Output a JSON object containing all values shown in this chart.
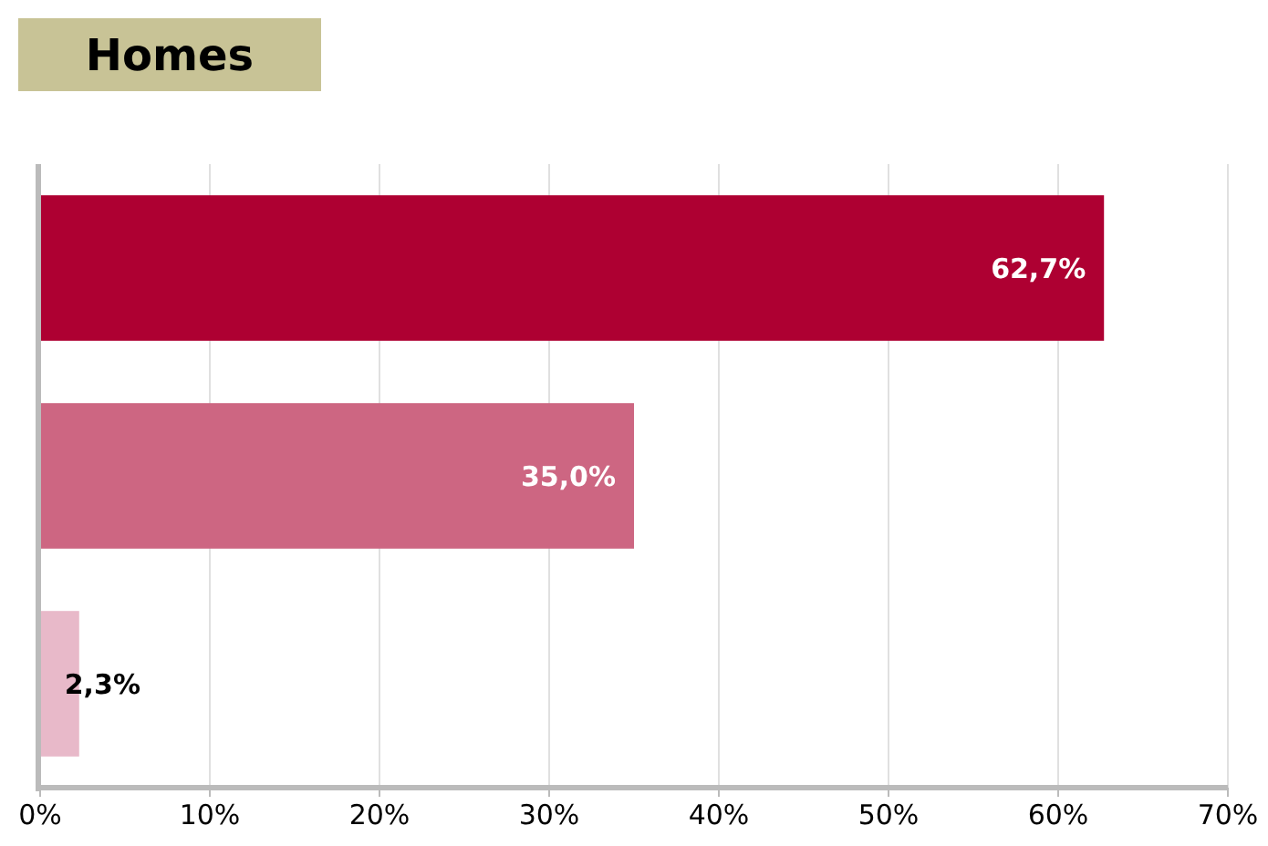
{
  "chart_data": {
    "type": "bar",
    "orientation": "horizontal",
    "title": "Homes",
    "categories": [
      null,
      null,
      null
    ],
    "values": [
      62.7,
      35.0,
      2.3
    ],
    "colors": [
      "#ae0032",
      "#cd6682",
      "#e8b9c9"
    ],
    "value_labels": [
      "62,7%",
      "35,0%",
      "2,3%"
    ],
    "xlim": [
      0,
      70
    ],
    "xticks": [
      {
        "value": 0,
        "label": "0%"
      },
      {
        "value": 10,
        "label": "10%"
      },
      {
        "value": 20,
        "label": "20%"
      },
      {
        "value": 30,
        "label": "30%"
      },
      {
        "value": 40,
        "label": "40%"
      },
      {
        "value": 50,
        "label": "50%"
      },
      {
        "value": 60,
        "label": "60%"
      },
      {
        "value": 70,
        "label": "70%"
      }
    ],
    "grid": "x"
  }
}
